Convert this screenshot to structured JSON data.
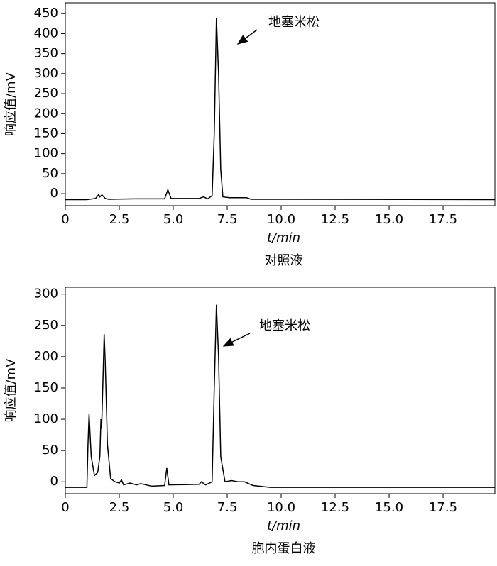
{
  "chart_data": [
    {
      "type": "line",
      "ylabel": "响应值/mV",
      "xlabel": "t/min",
      "caption": "对照液",
      "annotation": "地塞米松",
      "xlim": [
        0,
        19.9
      ],
      "ylim": [
        -30,
        477
      ],
      "xticks": [
        0,
        2.5,
        {
          "value": 5,
          "label": "5.0"
        },
        7.5,
        {
          "value": 10,
          "label": "10.0"
        },
        12.5,
        {
          "value": 15,
          "label": "15.0"
        },
        17.5
      ],
      "yticks": [
        0,
        50,
        100,
        150,
        200,
        250,
        300,
        350,
        400,
        450
      ],
      "series": [
        {
          "color": "#000000",
          "x": [
            0,
            1.0,
            1.4,
            1.55,
            1.6,
            1.7,
            1.85,
            2.0,
            3.2,
            4.6,
            4.75,
            4.9,
            6.2,
            6.4,
            6.6,
            6.8,
            6.9,
            7.0,
            7.1,
            7.2,
            7.3,
            7.6,
            8.4,
            8.6,
            10.2,
            19.9
          ],
          "values": [
            -15,
            -15,
            -12,
            -2,
            -8,
            -3,
            -12,
            -14,
            -13,
            -13,
            10,
            -12,
            -12,
            -8,
            -13,
            -5,
            150,
            440,
            300,
            60,
            -8,
            -10,
            -10,
            -14,
            -14,
            -15
          ]
        }
      ]
    },
    {
      "type": "line",
      "ylabel": "响应值/mV",
      "xlabel": "t/min",
      "caption": "胞内蛋白液",
      "annotation": "地塞米松",
      "xlim": [
        0,
        19.9
      ],
      "ylim": [
        -19,
        311
      ],
      "xticks": [
        0,
        2.5,
        {
          "value": 5,
          "label": "5.0"
        },
        7.5,
        {
          "value": 10,
          "label": "10.0"
        },
        12.5,
        {
          "value": 15,
          "label": "15.0"
        },
        17.5
      ],
      "yticks": [
        0,
        50,
        100,
        150,
        200,
        250,
        300
      ],
      "series": [
        {
          "color": "#000000",
          "x": [
            0,
            1.0,
            1.05,
            1.1,
            1.2,
            1.35,
            1.5,
            1.6,
            1.65,
            1.68,
            1.75,
            1.8,
            1.85,
            1.95,
            2.1,
            2.3,
            2.5,
            2.6,
            2.7,
            3.0,
            3.3,
            3.5,
            4.0,
            4.6,
            4.7,
            4.8,
            6.2,
            6.3,
            6.5,
            6.8,
            6.9,
            7.0,
            7.1,
            7.2,
            7.4,
            7.7,
            8.0,
            8.3,
            8.7,
            9.5,
            19.9
          ],
          "values": [
            -9,
            -9,
            60,
            108,
            40,
            10,
            15,
            40,
            100,
            85,
            170,
            236,
            190,
            60,
            5,
            0,
            -2,
            3,
            -5,
            -2,
            -5,
            -3,
            -7,
            -6,
            22,
            -5,
            -4,
            0,
            -5,
            0,
            150,
            283,
            200,
            40,
            0,
            2,
            0,
            0,
            -6,
            -9,
            -9
          ]
        }
      ]
    }
  ]
}
